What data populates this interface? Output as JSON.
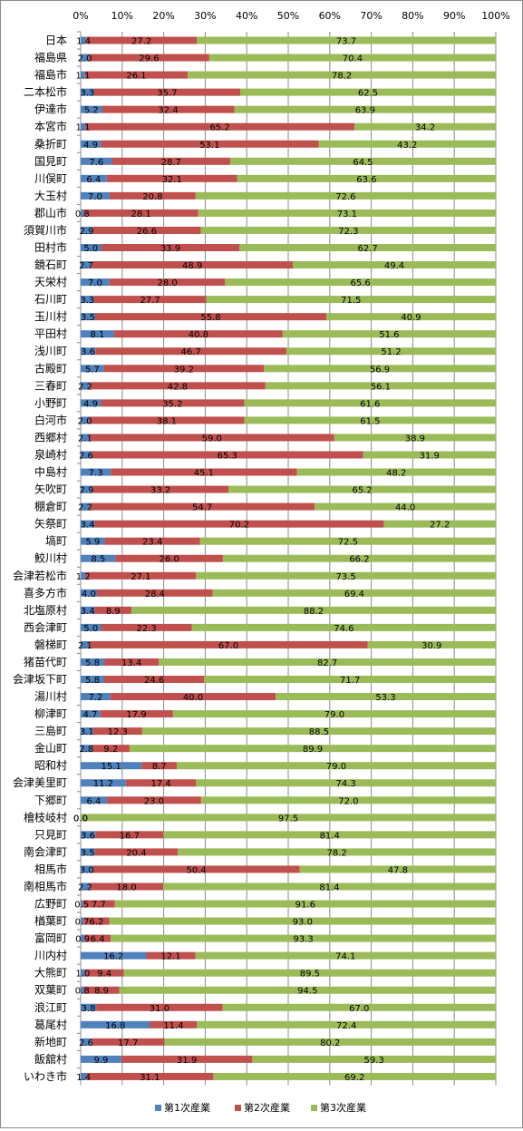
{
  "chart_data": {
    "type": "bar",
    "orientation": "horizontal",
    "stacked": "percent",
    "x_ticks": [
      "0%",
      "10%",
      "20%",
      "30%",
      "40%",
      "50%",
      "60%",
      "70%",
      "80%",
      "90%",
      "100%"
    ],
    "xlim": [
      0,
      100
    ],
    "grid": true,
    "legend_position": "bottom",
    "colors": [
      "#4f81bd",
      "#c0504d",
      "#9bbb59"
    ],
    "categories": [
      "日本",
      "福島県",
      "福島市",
      "二本松市",
      "伊達市",
      "本宮市",
      "桑折町",
      "国見町",
      "川俣町",
      "大玉村",
      "郡山市",
      "須賀川市",
      "田村市",
      "鏡石町",
      "天栄村",
      "石川町",
      "玉川村",
      "平田村",
      "浅川町",
      "古殿町",
      "三春町",
      "小野町",
      "白河市",
      "西郷村",
      "泉崎村",
      "中島村",
      "矢吹町",
      "棚倉町",
      "矢祭町",
      "塙町",
      "鮫川村",
      "会津若松市",
      "喜多方市",
      "北塩原村",
      "西会津町",
      "磐梯町",
      "猪苗代町",
      "会津坂下町",
      "湯川村",
      "柳津町",
      "三島町",
      "金山町",
      "昭和村",
      "会津美里町",
      "下郷町",
      "檜枝岐村",
      "只見町",
      "南会津町",
      "相馬市",
      "南相馬市",
      "広野町",
      "楢葉町",
      "富岡町",
      "川内村",
      "大熊町",
      "双葉町",
      "浪江町",
      "葛尾村",
      "新地町",
      "飯舘村",
      "いわき市"
    ],
    "series": [
      {
        "name": "第1次産業",
        "values": [
          1.4,
          2.0,
          1.1,
          3.3,
          5.2,
          1.1,
          4.9,
          7.6,
          6.4,
          7.0,
          0.8,
          2.9,
          5.0,
          2.7,
          7.0,
          3.3,
          3.5,
          8.1,
          3.6,
          5.7,
          2.2,
          4.9,
          2.0,
          2.1,
          2.6,
          7.3,
          2.9,
          2.2,
          3.4,
          5.9,
          8.5,
          1.2,
          4.0,
          3.4,
          5.0,
          2.1,
          5.8,
          5.8,
          7.2,
          4.7,
          3.1,
          2.8,
          15.1,
          11.2,
          6.4,
          0.0,
          3.6,
          3.5,
          3.0,
          2.2,
          0.5,
          0.7,
          0.9,
          16.2,
          1.0,
          0.8,
          3.8,
          16.8,
          2.6,
          9.9,
          1.4
        ]
      },
      {
        "name": "第2次産業",
        "values": [
          27.2,
          29.6,
          26.1,
          35.7,
          32.4,
          65.2,
          53.1,
          28.7,
          32.1,
          20.8,
          28.1,
          26.6,
          33.9,
          48.9,
          28.0,
          27.7,
          55.8,
          40.8,
          46.7,
          39.2,
          42.8,
          35.2,
          38.1,
          59.0,
          65.3,
          45.1,
          33.2,
          54.7,
          70.2,
          23.4,
          26.0,
          27.1,
          28.4,
          8.9,
          22.3,
          67.0,
          13.4,
          24.6,
          40.0,
          17.9,
          12.3,
          9.2,
          8.7,
          17.4,
          23.0,
          0.0,
          16.7,
          20.4,
          50.4,
          18.0,
          7.7,
          6.2,
          6.4,
          12.1,
          9.4,
          8.9,
          31.0,
          11.4,
          17.7,
          31.9,
          31.1
        ]
      },
      {
        "name": "第3次産業",
        "values": [
          73.7,
          70.4,
          78.2,
          62.5,
          63.9,
          34.2,
          43.2,
          64.5,
          63.6,
          72.6,
          73.1,
          72.3,
          62.7,
          49.4,
          65.6,
          71.5,
          40.9,
          51.6,
          51.2,
          56.9,
          56.1,
          61.6,
          61.5,
          38.9,
          31.9,
          48.2,
          65.2,
          44.0,
          27.2,
          72.5,
          66.2,
          73.5,
          69.4,
          88.2,
          74.6,
          30.9,
          82.7,
          71.7,
          53.3,
          79.0,
          88.5,
          89.9,
          79.0,
          74.3,
          72.0,
          97.5,
          81.4,
          78.2,
          47.8,
          81.4,
          91.6,
          93.0,
          93.3,
          74.1,
          89.5,
          94.5,
          67.0,
          72.4,
          80.2,
          59.3,
          69.2
        ]
      }
    ],
    "data_labels": [
      [
        "1.4",
        "27.2",
        "73.7"
      ],
      [
        "2.0",
        "29.6",
        "70.4"
      ],
      [
        "1.1",
        "26.1",
        "78.2"
      ],
      [
        "3.3",
        "35.7",
        "62.5"
      ],
      [
        "5.2",
        "32.4",
        "63.9"
      ],
      [
        "1.1",
        "65.2",
        "34.2"
      ],
      [
        "4.9",
        "53.1",
        "43.2"
      ],
      [
        "7.6",
        "28.7",
        "64.5"
      ],
      [
        "6.4",
        "32.1",
        "63.6"
      ],
      [
        "7.0",
        "20.8",
        "72.6"
      ],
      [
        "0.8",
        "28.1",
        "73.1"
      ],
      [
        "2.9",
        "26.6",
        "72.3"
      ],
      [
        "5.0",
        "33.9",
        "62.7"
      ],
      [
        "2.7",
        "48.9",
        "49.4"
      ],
      [
        "7.0",
        "28.0",
        "65.6"
      ],
      [
        "3.3",
        "27.7",
        "71.5"
      ],
      [
        "3.5",
        "55.8",
        "40.9"
      ],
      [
        "8.1",
        "40.8",
        "51.6"
      ],
      [
        "3.6",
        "46.7",
        "51.2"
      ],
      [
        "5.7",
        "39.2",
        "56.9"
      ],
      [
        "2.2",
        "42.8",
        "56.1"
      ],
      [
        "4.9",
        "35.2",
        "61.6"
      ],
      [
        "2.0",
        "38.1",
        "61.5"
      ],
      [
        "2.1",
        "59.0",
        "38.9"
      ],
      [
        "2.6",
        "65.3",
        "31.9"
      ],
      [
        "7.3",
        "45.1",
        "48.2"
      ],
      [
        "2.9",
        "33.2",
        "65.2"
      ],
      [
        "2.2",
        "54.7",
        "44.0"
      ],
      [
        "3.4",
        "70.2",
        "27.2"
      ],
      [
        "5.9",
        "23.4",
        "72.5"
      ],
      [
        "8.5",
        "26.0",
        "66.2"
      ],
      [
        "1.2",
        "27.1",
        "73.5"
      ],
      [
        "4.0",
        "28.4",
        "69.4"
      ],
      [
        "3.4",
        "8.9",
        "88.2"
      ],
      [
        "5.0",
        "22.3",
        "74.6"
      ],
      [
        "2.1",
        "67.0",
        "30.9"
      ],
      [
        "5.8",
        "13.4",
        "82.7"
      ],
      [
        "5.8",
        "24.6",
        "71.7"
      ],
      [
        "7.2",
        "40.0",
        "53.3"
      ],
      [
        "4.7",
        "17.9",
        "79.0"
      ],
      [
        "3.1",
        "12.3",
        "88.5"
      ],
      [
        "2.8",
        "9.2",
        "89.9"
      ],
      [
        "15.1",
        "8.7",
        "79.0"
      ],
      [
        "11.2",
        "17.4",
        "74.3"
      ],
      [
        "6.4",
        "23.0",
        "72.0"
      ],
      [
        "0.0",
        "0.0",
        "97.5"
      ],
      [
        "3.6",
        "16.7",
        "81.4"
      ],
      [
        "3.5",
        "20.4",
        "78.2"
      ],
      [
        "3.0",
        "50.4",
        "47.8"
      ],
      [
        "2.2",
        "18.0",
        "81.4"
      ],
      [
        "0.5",
        "7.7",
        "91.6"
      ],
      [
        "0.7",
        "6.2",
        "93.0"
      ],
      [
        "0.9",
        "6.4",
        "93.3"
      ],
      [
        "16.2",
        "12.1",
        "74.1"
      ],
      [
        "1.0",
        "9.4",
        "89.5"
      ],
      [
        "0.8",
        "8.9",
        "94.5"
      ],
      [
        "3.8",
        "31.0",
        "67.0"
      ],
      [
        "16.8",
        "11.4",
        "72.4"
      ],
      [
        "2.6",
        "17.7",
        "80.2"
      ],
      [
        "9.9",
        "31.9",
        "59.3"
      ],
      [
        "1.4",
        "31.1",
        "69.2"
      ]
    ]
  }
}
